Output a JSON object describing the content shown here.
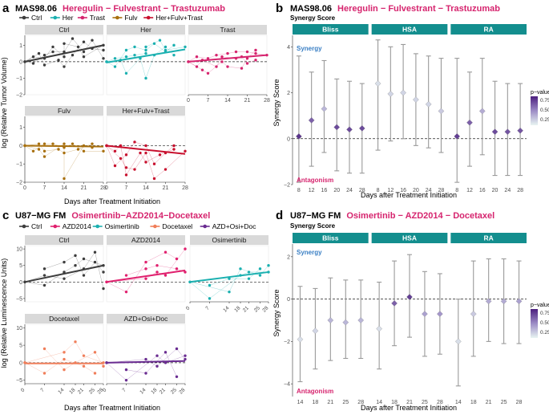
{
  "colors": {
    "magenta": "#d6246e",
    "strip": "#d9d9d9",
    "teal_header": "#138e8e",
    "synergy_blue": "#3a7fc4",
    "antagonism_magenta": "#d6246e"
  },
  "panel_a": {
    "letter": "a",
    "cell_line": "MAS98.06",
    "drugs": "Heregulin − Fulvestrant − Trastuzumab",
    "legend": [
      {
        "label": "Ctrl",
        "color": "#3d3d3d"
      },
      {
        "label": "Her",
        "color": "#1ab0b0"
      },
      {
        "label": "Trast",
        "color": "#d6246e"
      },
      {
        "label": "Fulv",
        "color": "#a8700e"
      },
      {
        "label": "Her+Fulv+Trast",
        "color": "#c8102e"
      }
    ],
    "ylabel": "log (Relative Tumor Volume)",
    "xlabel": "Days after Treatment Initiation",
    "x_ticks": [
      "0",
      "7",
      "14",
      "21",
      "28"
    ],
    "y_ticks": [
      "−2",
      "−1",
      "0",
      "1"
    ]
  },
  "panel_b": {
    "letter": "b",
    "cell_line": "MAS98.06",
    "drugs": "Heregulin − Fulvestrant − Trastuzumab",
    "score_title": "Synergy Score",
    "ylabel": "Synergy Score",
    "xlabel": "Days after Treatment Initiation",
    "synergy_label": "Synergy",
    "antagonism_label": "Antagonism",
    "y_ticks": [
      "−2",
      "0",
      "2",
      "4"
    ],
    "legend_title": "p−value",
    "legend_ticks": [
      "0.75",
      "0.50",
      "0.25"
    ]
  },
  "panel_c": {
    "letter": "c",
    "cell_line": "U87−MG FM",
    "drugs": "Osimertinib−AZD2014−Docetaxel",
    "legend": [
      {
        "label": "Ctrl",
        "color": "#3d3d3d"
      },
      {
        "label": "AZD2014",
        "color": "#e0206e"
      },
      {
        "label": "Osimertinib",
        "color": "#1ab0b0"
      },
      {
        "label": "Docetaxel",
        "color": "#f07e5a"
      },
      {
        "label": "AZD+Osi+Doc",
        "color": "#6a2c91"
      }
    ],
    "ylabel": "log (Relative Luminescence Units)",
    "xlabel": "Days after Treatment Initiation",
    "x_ticks": [
      "0",
      "7",
      "14",
      "18",
      "21",
      "25",
      "28"
    ],
    "y_ticks": [
      "−5",
      "0",
      "5",
      "10"
    ]
  },
  "panel_d": {
    "letter": "d",
    "cell_line": "U87−MG FM",
    "drugs": "Osimertinib − AZD2014 − Docetaxel",
    "score_title": "Synergy Score",
    "ylabel": "Synergy Score",
    "xlabel": "Days after Treatment Initiation",
    "synergy_label": "Synergy",
    "antagonism_label": "Antagonism",
    "y_ticks": [
      "−4",
      "−2",
      "0",
      "2"
    ],
    "legend_title": "p−value",
    "legend_ticks": [
      "0.75",
      "0.50",
      "0.25"
    ]
  },
  "chart_data": [
    {
      "type": "line",
      "panel": "a",
      "facets": [
        "Ctrl",
        "Her",
        "Trast",
        "Fulv",
        "Her+Fulv+Trast"
      ],
      "xlim": [
        0,
        28
      ],
      "ylim": [
        -2,
        1.6
      ],
      "x_ticks": [
        0,
        7,
        14,
        21,
        28
      ],
      "y_ticks": [
        -2,
        -1,
        0,
        1
      ],
      "fits": [
        {
          "name": "Ctrl",
          "x": [
            0,
            28
          ],
          "y": [
            0.0,
            1.0
          ]
        },
        {
          "name": "Her",
          "x": [
            0,
            28
          ],
          "y": [
            -0.05,
            0.75
          ]
        },
        {
          "name": "Trast",
          "x": [
            0,
            28
          ],
          "y": [
            0.0,
            0.4
          ]
        },
        {
          "name": "Fulv",
          "x": [
            0,
            28
          ],
          "y": [
            0.0,
            -0.05
          ]
        },
        {
          "name": "Her+Fulv+Trast",
          "x": [
            0,
            28
          ],
          "y": [
            0.0,
            -0.45
          ]
        }
      ],
      "points": [
        {
          "name": "Ctrl",
          "x": [
            0,
            0,
            0,
            3,
            3,
            5,
            7,
            7,
            7,
            10,
            10,
            12,
            14,
            14,
            14,
            14,
            17,
            17,
            19,
            21,
            21,
            21,
            24,
            24,
            28,
            28,
            28
          ],
          "y": [
            0,
            0,
            0,
            0.3,
            -0.1,
            0.5,
            0.2,
            0.4,
            -0.2,
            0.9,
            0.6,
            0.1,
            0.3,
            0.6,
            -0.3,
            1.1,
            1.4,
            0.4,
            0.9,
            0.6,
            1.2,
            0.3,
            1.3,
            0.8,
            1.0,
            0.2,
            0.7
          ]
        },
        {
          "name": "Her",
          "x": [
            0,
            0,
            0,
            3,
            3,
            5,
            7,
            7,
            7,
            10,
            10,
            12,
            14,
            14,
            14,
            14,
            17,
            17,
            19,
            21,
            21,
            21,
            24,
            24,
            28
          ],
          "y": [
            0,
            0,
            0,
            0.2,
            -0.3,
            0.1,
            0.3,
            0.7,
            -0.7,
            0.4,
            0.9,
            0.2,
            0.5,
            0.7,
            -1.0,
            0.9,
            1.1,
            0.4,
            1.3,
            0.6,
            0.9,
            0.7,
            1.0,
            0.4,
            0.9
          ]
        },
        {
          "name": "Trast",
          "x": [
            0,
            0,
            0,
            3,
            3,
            5,
            5,
            7,
            7,
            10,
            10,
            12,
            12,
            14,
            14,
            17,
            17,
            19,
            19,
            21,
            21,
            21,
            24,
            24,
            24,
            28
          ],
          "y": [
            0,
            0,
            0,
            -0.3,
            0.3,
            -0.5,
            0.1,
            0.2,
            -0.7,
            -0.3,
            0.4,
            0.0,
            0.3,
            0.5,
            -0.3,
            0.2,
            0.6,
            -0.4,
            0.3,
            0.6,
            0.2,
            -0.1,
            0.5,
            0.7,
            0.1,
            0.4
          ]
        },
        {
          "name": "Fulv",
          "x": [
            0,
            0,
            0,
            3,
            5,
            5,
            7,
            7,
            7,
            10,
            12,
            14,
            14,
            14,
            14,
            17,
            19,
            21,
            21,
            24,
            24,
            28
          ],
          "y": [
            0,
            0,
            0,
            -0.3,
            0.1,
            -0.2,
            0.1,
            -0.3,
            -0.6,
            0.1,
            -0.2,
            0.1,
            -0.1,
            -0.4,
            -1.8,
            0.1,
            -0.2,
            0.0,
            -0.3,
            0.1,
            -0.1,
            -0.3
          ]
        },
        {
          "name": "Her+Fulv+Trast",
          "x": [
            0,
            0,
            0,
            3,
            3,
            5,
            5,
            7,
            7,
            7,
            10,
            10,
            12,
            14,
            14,
            14,
            17,
            17,
            19,
            21,
            21,
            24,
            24,
            28
          ],
          "y": [
            0,
            0,
            0,
            -0.3,
            -1.1,
            -0.7,
            0.0,
            -0.5,
            -1.2,
            -1.6,
            0.2,
            -1.3,
            -0.4,
            0.0,
            -0.4,
            -0.9,
            -1.0,
            -1.8,
            -0.5,
            -0.4,
            -1.3,
            -0.2,
            0.0,
            -0.3
          ]
        }
      ]
    },
    {
      "type": "scatter",
      "panel": "b",
      "facets": [
        "Bliss",
        "HSA",
        "RA"
      ],
      "categories": [
        8,
        12,
        16,
        20,
        24,
        28
      ],
      "ylim": [
        -2,
        4.5
      ],
      "y_ticks": [
        -2,
        0,
        2,
        4
      ],
      "series": [
        {
          "name": "Bliss",
          "values": [
            0.1,
            0.8,
            1.3,
            0.5,
            0.4,
            0.45
          ],
          "lower": [
            -1.9,
            -1.2,
            -0.6,
            -1.4,
            -1.5,
            -1.5
          ],
          "upper": [
            3.6,
            2.9,
            3.4,
            2.6,
            2.5,
            2.4
          ],
          "p": [
            0.9,
            0.7,
            0.3,
            0.8,
            0.8,
            0.8
          ]
        },
        {
          "name": "HSA",
          "values": [
            2.4,
            1.95,
            2.0,
            1.7,
            1.5,
            1.2
          ],
          "lower": [
            -0.5,
            -0.1,
            0.0,
            -0.3,
            -0.4,
            -0.6
          ],
          "upper": [
            4.3,
            4.0,
            4.1,
            3.7,
            3.6,
            3.5
          ],
          "p": [
            0.1,
            0.15,
            0.15,
            0.15,
            0.15,
            0.2
          ]
        },
        {
          "name": "RA",
          "values": [
            0.1,
            0.7,
            1.2,
            0.3,
            0.3,
            0.35
          ],
          "lower": [
            -1.9,
            -1.2,
            -0.7,
            -1.6,
            -1.6,
            -1.6
          ],
          "upper": [
            3.5,
            2.9,
            3.5,
            2.5,
            2.4,
            2.4
          ],
          "p": [
            0.85,
            0.7,
            0.35,
            0.8,
            0.75,
            0.75
          ]
        }
      ]
    },
    {
      "type": "line",
      "panel": "c",
      "facets": [
        "Ctrl",
        "AZD2014",
        "Osimertinib",
        "Docetaxel",
        "AZD+Osi+Doc"
      ],
      "xlim": [
        0,
        28
      ],
      "ylim": [
        -6,
        11
      ],
      "x_ticks": [
        0,
        7,
        14,
        18,
        21,
        25,
        28
      ],
      "y_ticks": [
        -5,
        0,
        5,
        10
      ],
      "fits": [
        {
          "name": "Ctrl",
          "x": [
            0,
            28
          ],
          "y": [
            0.0,
            5.0
          ]
        },
        {
          "name": "AZD2014",
          "x": [
            0,
            28
          ],
          "y": [
            0.0,
            3.5
          ]
        },
        {
          "name": "Osimertinib",
          "x": [
            0,
            28
          ],
          "y": [
            0.0,
            3.0
          ]
        },
        {
          "name": "Docetaxel",
          "x": [
            0,
            28
          ],
          "y": [
            -0.2,
            -0.2
          ]
        },
        {
          "name": "AZD+Osi+Doc",
          "x": [
            0,
            28
          ],
          "y": [
            0.0,
            0.5
          ]
        }
      ],
      "points": [
        {
          "name": "Ctrl",
          "x": [
            0,
            0,
            7,
            7,
            7,
            14,
            14,
            14,
            18,
            18,
            21,
            21,
            21,
            25,
            25,
            28,
            28,
            28
          ],
          "y": [
            0,
            0,
            4,
            -1,
            2,
            6,
            3,
            1,
            8,
            5,
            4,
            2,
            7,
            9,
            6,
            5,
            -2,
            3
          ]
        },
        {
          "name": "AZD2014",
          "x": [
            0,
            0,
            7,
            7,
            14,
            14,
            14,
            18,
            18,
            21,
            21,
            25,
            25,
            28,
            28
          ],
          "y": [
            0,
            0,
            2,
            -3,
            1,
            4,
            6,
            3,
            5,
            9,
            2,
            4,
            7,
            10,
            3
          ]
        },
        {
          "name": "Osimertinib",
          "x": [
            0,
            0,
            7,
            7,
            14,
            14,
            18,
            18,
            21,
            21,
            25,
            25,
            28,
            28
          ],
          "y": [
            0,
            0,
            -1,
            -5,
            -3,
            1,
            2,
            4,
            1,
            3,
            2,
            4,
            3,
            5
          ]
        },
        {
          "name": "Docetaxel",
          "x": [
            0,
            0,
            7,
            7,
            14,
            14,
            14,
            18,
            18,
            21,
            21,
            25,
            25,
            28,
            28
          ],
          "y": [
            0,
            0,
            4,
            -3,
            3,
            -2,
            1,
            6,
            0,
            -1,
            2,
            3,
            -3,
            0,
            -1
          ]
        },
        {
          "name": "AZD+Osi+Doc",
          "x": [
            0,
            0,
            7,
            7,
            14,
            14,
            18,
            18,
            21,
            21,
            25,
            25,
            28,
            28
          ],
          "y": [
            0,
            0,
            -2,
            -5,
            1,
            -3,
            2,
            -1,
            3,
            0,
            4,
            -4,
            2,
            1
          ]
        }
      ]
    },
    {
      "type": "scatter",
      "panel": "d",
      "facets": [
        "Bliss",
        "HSA",
        "RA"
      ],
      "categories": [
        14,
        18,
        21,
        25,
        28
      ],
      "ylim": [
        -4.6,
        2.6
      ],
      "y_ticks": [
        -4,
        -2,
        0,
        2
      ],
      "series": [
        {
          "name": "Bliss",
          "values": [
            -1.9,
            -1.5,
            -1.0,
            -1.1,
            -1.0
          ],
          "lower": [
            -3.9,
            -3.3,
            -2.9,
            -2.8,
            -2.8
          ],
          "upper": [
            0.6,
            0.5,
            1.0,
            0.9,
            0.9
          ],
          "p": [
            0.1,
            0.15,
            0.3,
            0.3,
            0.3
          ]
        },
        {
          "name": "HSA",
          "values": [
            -1.4,
            -0.2,
            0.1,
            -0.7,
            -0.7
          ],
          "lower": [
            -3.3,
            -2.2,
            -1.8,
            -2.7,
            -2.6
          ],
          "upper": [
            0.8,
            1.8,
            2.1,
            1.3,
            1.2
          ],
          "p": [
            0.1,
            0.7,
            0.85,
            0.4,
            0.45
          ]
        },
        {
          "name": "RA",
          "values": [
            -2.0,
            -0.7,
            -0.1,
            -0.1,
            -0.1
          ],
          "lower": [
            -4.1,
            -2.7,
            -2.0,
            -2.1,
            -2.1
          ],
          "upper": [
            0.0,
            1.8,
            1.9,
            1.9,
            1.8
          ],
          "p": [
            0.1,
            0.2,
            0.35,
            0.35,
            0.4
          ]
        }
      ]
    }
  ]
}
